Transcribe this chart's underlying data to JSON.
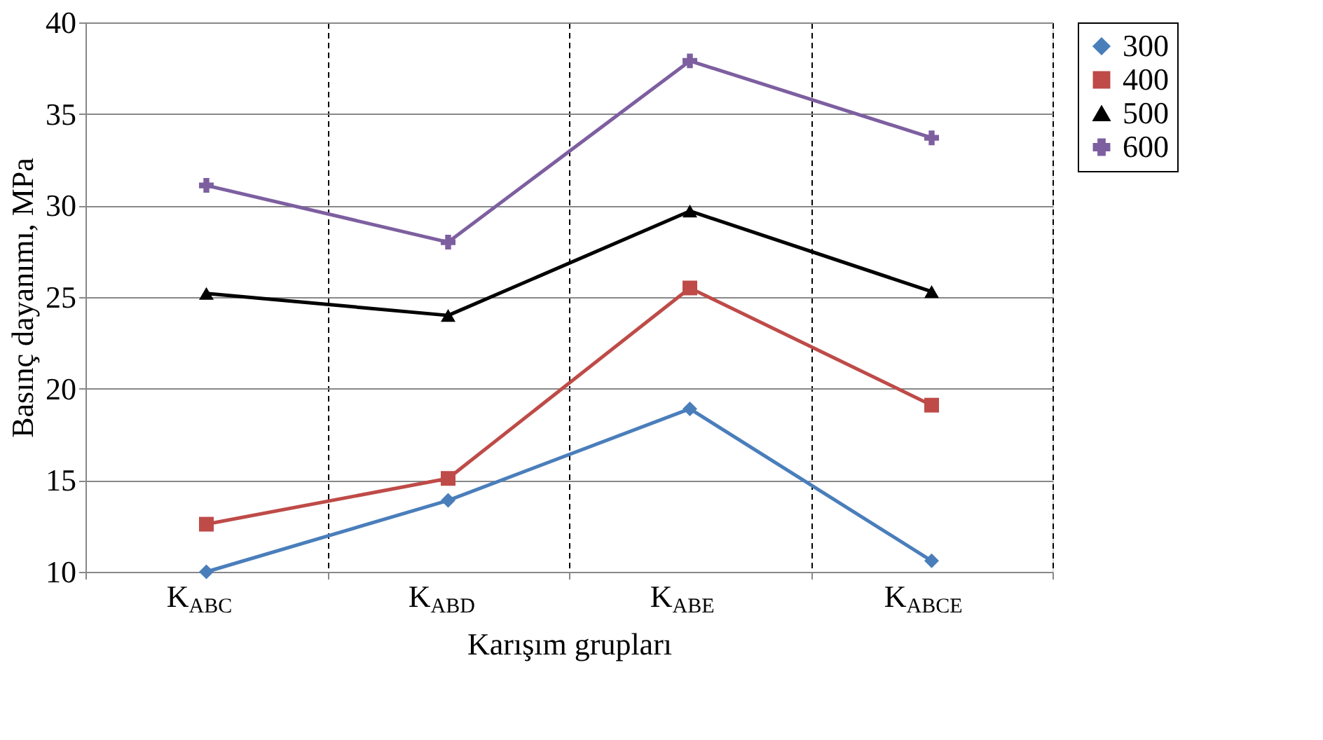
{
  "chart_data": {
    "type": "line",
    "xlabel": "Karışım grupları",
    "ylabel": "Basınç dayanımı, MPa",
    "categories": [
      "K$_{ABC}$",
      "K$_{ABD}$",
      "K$_{ABE}$",
      "K$_{ABCE}$"
    ],
    "ylim": [
      10,
      40
    ],
    "yticks": [
      10,
      15,
      20,
      25,
      30,
      35,
      40
    ],
    "grid": true,
    "legend": "right",
    "series": [
      {
        "name": "300",
        "color": "#4a7ebb",
        "marker": "diamond",
        "values": [
          10.0,
          13.9,
          18.9,
          10.6
        ]
      },
      {
        "name": "400",
        "color": "#be4b48",
        "marker": "square",
        "values": [
          12.6,
          15.1,
          25.5,
          19.1
        ]
      },
      {
        "name": "500",
        "color": "#000000",
        "marker": "triangle",
        "values": [
          25.2,
          24.0,
          29.7,
          25.3
        ]
      },
      {
        "name": "600",
        "color": "#7d5fa0",
        "marker": "cross",
        "values": [
          31.1,
          28.0,
          37.9,
          33.7
        ]
      }
    ]
  }
}
